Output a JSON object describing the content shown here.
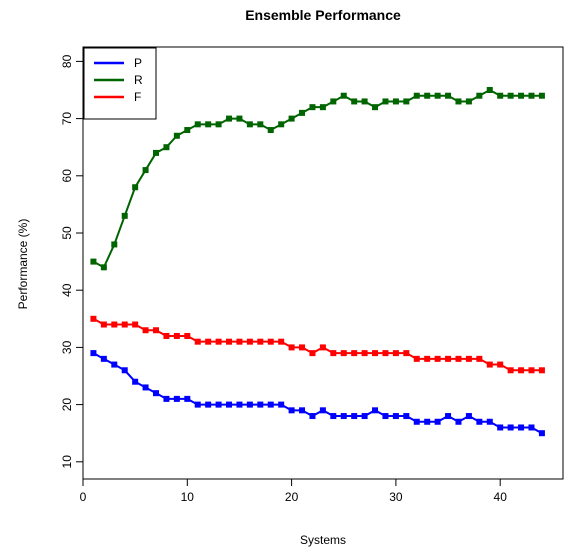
{
  "chart_data": {
    "type": "line",
    "title": "Ensemble Performance",
    "xlabel": "Systems",
    "ylabel": "Performance (%)",
    "xlim": [
      0,
      44
    ],
    "ylim": [
      8,
      82
    ],
    "xticks": [
      0,
      10,
      20,
      30,
      40
    ],
    "yticks": [
      10,
      20,
      30,
      40,
      50,
      60,
      70,
      80
    ],
    "grid": false,
    "legend_position": "top-left",
    "x": [
      1,
      2,
      3,
      4,
      5,
      6,
      7,
      8,
      9,
      10,
      11,
      12,
      13,
      14,
      15,
      16,
      17,
      18,
      19,
      20,
      21,
      22,
      23,
      24,
      25,
      26,
      27,
      28,
      29,
      30,
      31,
      32,
      33,
      34,
      35,
      36,
      37,
      38,
      39,
      40,
      41,
      42,
      43,
      44
    ],
    "series": [
      {
        "name": "P",
        "color": "#0000ff",
        "values": [
          29,
          28,
          27,
          26,
          24,
          23,
          22,
          21,
          21,
          21,
          20,
          20,
          20,
          20,
          20,
          20,
          20,
          20,
          20,
          19,
          19,
          18,
          19,
          18,
          18,
          18,
          18,
          19,
          18,
          18,
          18,
          17,
          17,
          17,
          18,
          17,
          18,
          17,
          17,
          16,
          16,
          16,
          16,
          15
        ]
      },
      {
        "name": "R",
        "color": "#006400",
        "values": [
          45,
          44,
          48,
          53,
          58,
          61,
          64,
          65,
          67,
          68,
          69,
          69,
          69,
          70,
          70,
          69,
          69,
          68,
          69,
          70,
          71,
          72,
          72,
          73,
          74,
          73,
          73,
          72,
          73,
          73,
          73,
          74,
          74,
          74,
          74,
          73,
          73,
          74,
          75,
          74,
          74,
          74,
          74,
          74
        ]
      },
      {
        "name": "F",
        "color": "#ff0000",
        "values": [
          35,
          34,
          34,
          34,
          34,
          33,
          33,
          32,
          32,
          32,
          31,
          31,
          31,
          31,
          31,
          31,
          31,
          31,
          31,
          30,
          30,
          29,
          30,
          29,
          29,
          29,
          29,
          29,
          29,
          29,
          29,
          28,
          28,
          28,
          28,
          28,
          28,
          28,
          27,
          27,
          26,
          26,
          26,
          26
        ]
      }
    ]
  }
}
